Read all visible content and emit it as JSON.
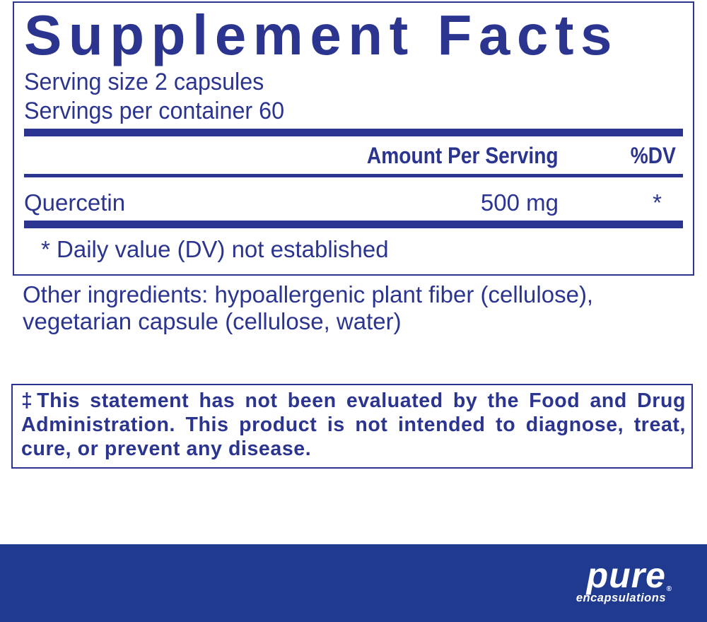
{
  "facts": {
    "title": "Supplement Facts",
    "serving_size": "Serving size  2 capsules",
    "servings_per_container": "Servings per container  60",
    "header_amount": "Amount Per Serving",
    "header_dv": "%DV",
    "ingredients": [
      {
        "name": "Quercetin",
        "amount": "500 mg",
        "dv": "*"
      }
    ],
    "footnote": "* Daily value (DV) not established"
  },
  "other_ingredients": "Other ingredients: hypoallergenic plant fiber (cellulose), vegetarian capsule (cellulose, water)",
  "disclaimer": "‡This statement has not been evaluated by the Food and Drug Administration. This product is not intended to diagnose, treat, cure, or prevent any disease.",
  "footer": {
    "logo_main": "pure",
    "logo_sub": "encapsulations",
    "logo_reg": "®",
    "background_color": "#1f3a8f"
  },
  "colors": {
    "text": "#2b3590"
  }
}
